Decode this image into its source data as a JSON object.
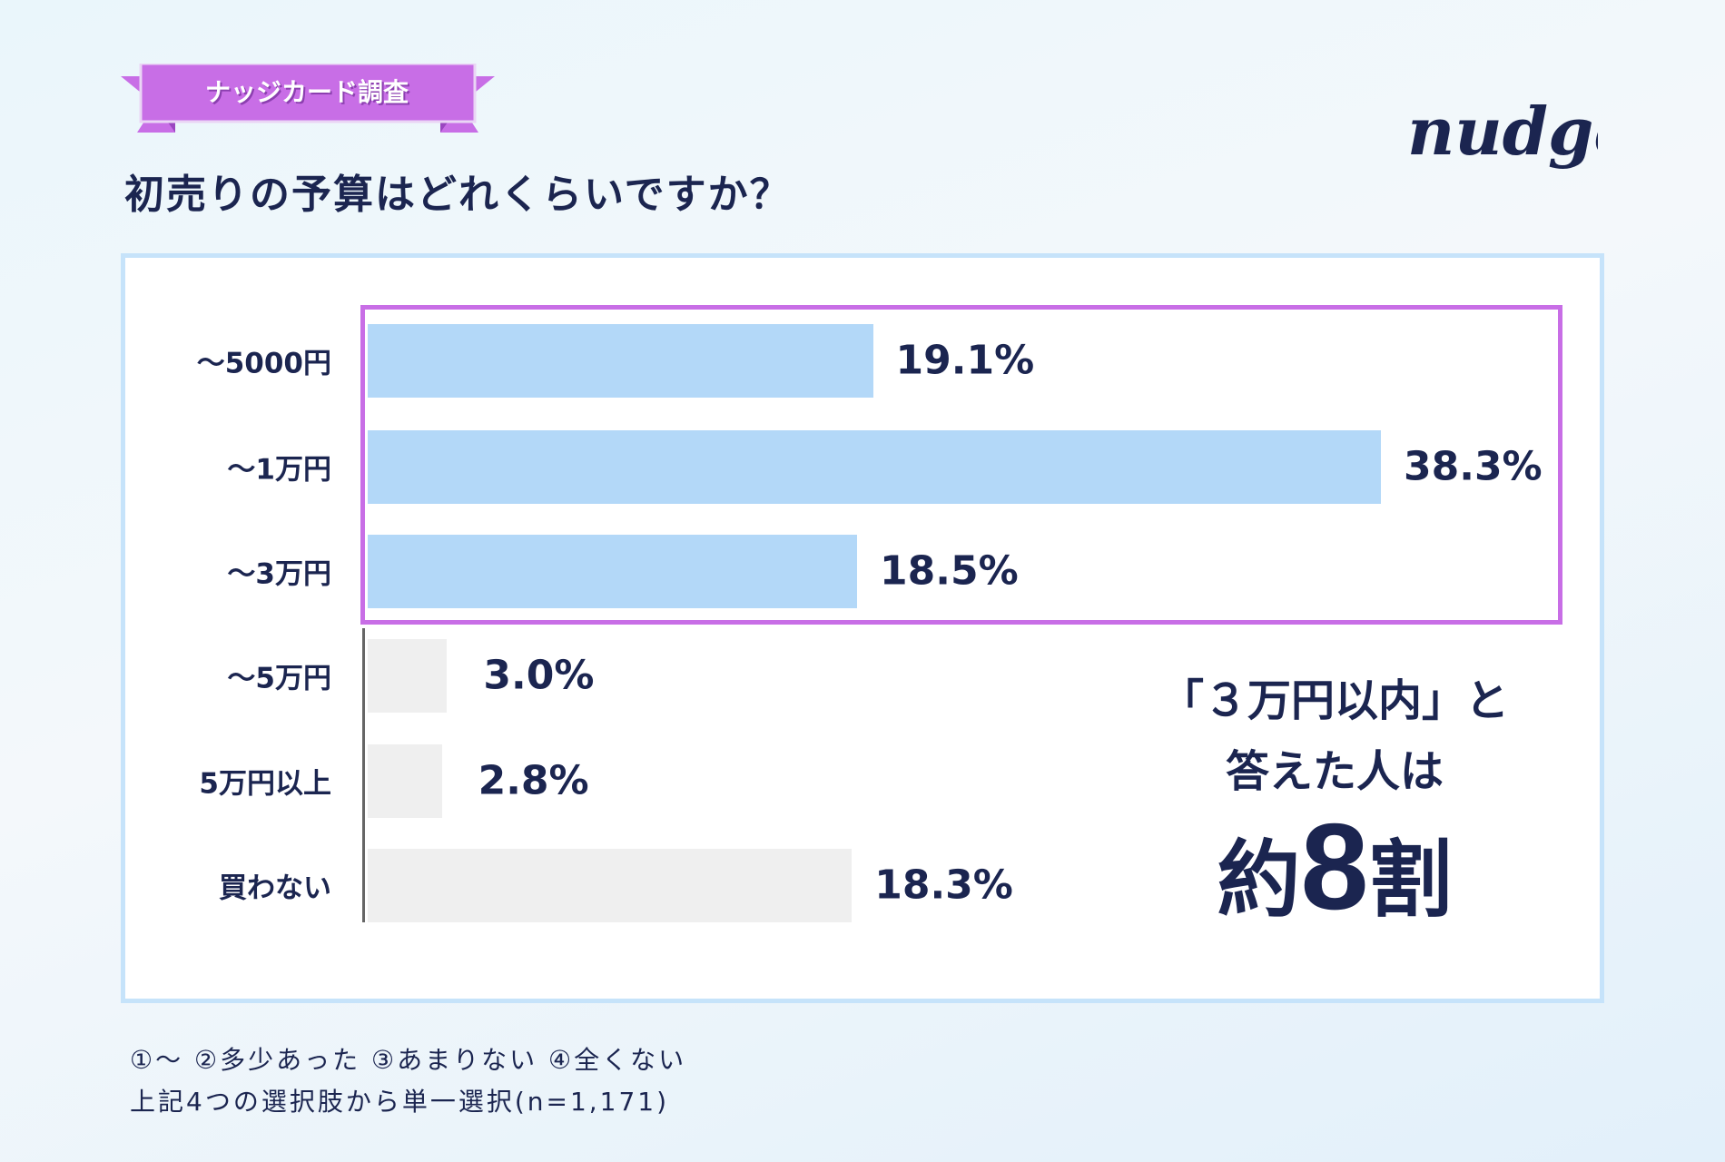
{
  "banner": {
    "label": "ナッジカード調査"
  },
  "title": "初売りの予算はどれくらいですか？",
  "logo": "nudge",
  "colors": {
    "highlight": "#b3d8f8",
    "other": "#efefef",
    "frame": "#c86ee6",
    "text": "#1b2550"
  },
  "chart_data": {
    "type": "bar",
    "orientation": "horizontal",
    "title": "初売りの予算はどれくらいですか？",
    "categories": [
      "～5000円",
      "～1万円",
      "～3万円",
      "～5万円",
      "5万円以上",
      "買わない"
    ],
    "values": [
      19.1,
      38.3,
      18.5,
      3.0,
      2.8,
      18.3
    ],
    "labels": [
      "19.1%",
      "38.3%",
      "18.5%",
      "3.0%",
      "2.8%",
      "18.3%"
    ],
    "highlighted": [
      true,
      true,
      true,
      false,
      false,
      false
    ],
    "unit": "%",
    "xlim": [
      0,
      40
    ]
  },
  "annotation": {
    "line1": "「３万円以内」と",
    "line2": "答えた人は",
    "prefix": "約",
    "number": "8",
    "suffix": "割"
  },
  "footnote": {
    "line1": "①～ ②多少あった ③あまりない ④全くない",
    "line2": "上記4つの選択肢から単一選択(n=1,171)"
  }
}
